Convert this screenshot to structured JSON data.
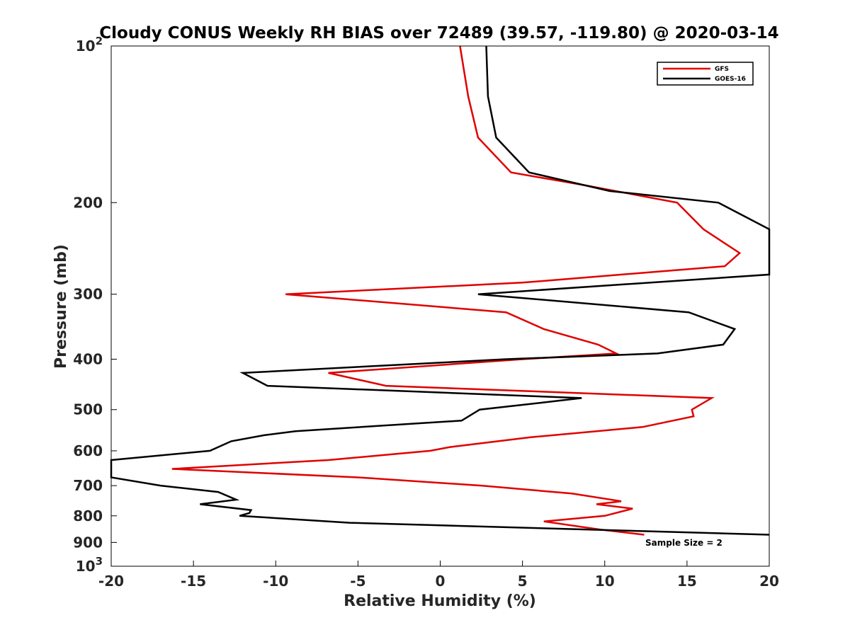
{
  "chart_data": {
    "type": "line",
    "title": "Cloudy CONUS Weekly RH BIAS over 72489 (39.57, -119.80) @ 2020-03-14",
    "xlabel": "Relative Humidity (%)",
    "ylabel": "Pressure (mb)",
    "xlim": [
      -20,
      20
    ],
    "ylim": [
      100,
      1000
    ],
    "y_scale": "log",
    "y_reversed": true,
    "grid": false,
    "legend_position": "top-right",
    "x_ticks": [
      -20,
      -15,
      -10,
      -5,
      0,
      5,
      10,
      15,
      20
    ],
    "x_tick_labels": [
      "-20",
      "-15",
      "-10",
      "-5",
      "0",
      "5",
      "10",
      "15",
      "20"
    ],
    "y_ticks": [
      {
        "value": 100,
        "base": "10",
        "exp": "2"
      },
      {
        "value": 200,
        "label": "200"
      },
      {
        "value": 300,
        "label": "300"
      },
      {
        "value": 400,
        "label": "400"
      },
      {
        "value": 500,
        "label": "500"
      },
      {
        "value": 600,
        "label": "600"
      },
      {
        "value": 700,
        "label": "700"
      },
      {
        "value": 800,
        "label": "800"
      },
      {
        "value": 900,
        "label": "900"
      },
      {
        "value": 1000,
        "base": "10",
        "exp": "3"
      }
    ],
    "series": [
      {
        "name": "GFS",
        "color": "#e00000",
        "points": [
          {
            "p": 100,
            "x": 1.2
          },
          {
            "p": 125,
            "x": 1.7
          },
          {
            "p": 150,
            "x": 2.3
          },
          {
            "p": 175,
            "x": 4.3
          },
          {
            "p": 185,
            "x": 8.7
          },
          {
            "p": 200,
            "x": 14.4
          },
          {
            "p": 225,
            "x": 16.0
          },
          {
            "p": 250,
            "x": 18.2
          },
          {
            "p": 265,
            "x": 17.3
          },
          {
            "p": 285,
            "x": 5.0
          },
          {
            "p": 300,
            "x": -9.4
          },
          {
            "p": 325,
            "x": 4.0
          },
          {
            "p": 350,
            "x": 6.3
          },
          {
            "p": 375,
            "x": 9.6
          },
          {
            "p": 390,
            "x": 10.7
          },
          {
            "p": 400,
            "x": 5.0
          },
          {
            "p": 425,
            "x": -6.8
          },
          {
            "p": 450,
            "x": -3.3
          },
          {
            "p": 475,
            "x": 16.5
          },
          {
            "p": 500,
            "x": 15.3
          },
          {
            "p": 515,
            "x": 15.4
          },
          {
            "p": 540,
            "x": 12.3
          },
          {
            "p": 565,
            "x": 5.5
          },
          {
            "p": 590,
            "x": 0.6
          },
          {
            "p": 600,
            "x": -0.6
          },
          {
            "p": 625,
            "x": -6.8
          },
          {
            "p": 650,
            "x": -16.3
          },
          {
            "p": 675,
            "x": -5.0
          },
          {
            "p": 700,
            "x": 2.5
          },
          {
            "p": 725,
            "x": 8.0
          },
          {
            "p": 750,
            "x": 11.0
          },
          {
            "p": 760,
            "x": 9.5
          },
          {
            "p": 775,
            "x": 11.7
          },
          {
            "p": 800,
            "x": 10.0
          },
          {
            "p": 820,
            "x": 6.3
          },
          {
            "p": 850,
            "x": 9.7
          },
          {
            "p": 870,
            "x": 12.4
          }
        ]
      },
      {
        "name": "GOES-16",
        "color": "#000000",
        "points": [
          {
            "p": 100,
            "x": 2.8
          },
          {
            "p": 125,
            "x": 2.9
          },
          {
            "p": 150,
            "x": 3.4
          },
          {
            "p": 175,
            "x": 5.4
          },
          {
            "p": 190,
            "x": 10.3
          },
          {
            "p": 200,
            "x": 16.9
          },
          {
            "p": 225,
            "x": 20.0
          },
          {
            "p": 275,
            "x": 20.0
          },
          {
            "p": 300,
            "x": 2.3
          },
          {
            "p": 325,
            "x": 15.1
          },
          {
            "p": 350,
            "x": 17.9
          },
          {
            "p": 375,
            "x": 17.2
          },
          {
            "p": 390,
            "x": 13.2
          },
          {
            "p": 400,
            "x": 4.0
          },
          {
            "p": 425,
            "x": -12.0
          },
          {
            "p": 450,
            "x": -10.5
          },
          {
            "p": 475,
            "x": 8.6
          },
          {
            "p": 490,
            "x": 4.9
          },
          {
            "p": 500,
            "x": 2.4
          },
          {
            "p": 525,
            "x": 1.3
          },
          {
            "p": 550,
            "x": -8.8
          },
          {
            "p": 560,
            "x": -10.7
          },
          {
            "p": 575,
            "x": -12.7
          },
          {
            "p": 600,
            "x": -14.0
          },
          {
            "p": 625,
            "x": -20.0
          },
          {
            "p": 675,
            "x": -20.0
          },
          {
            "p": 700,
            "x": -17.0
          },
          {
            "p": 720,
            "x": -13.5
          },
          {
            "p": 745,
            "x": -12.4
          },
          {
            "p": 760,
            "x": -14.6
          },
          {
            "p": 780,
            "x": -11.5
          },
          {
            "p": 790,
            "x": -11.6
          },
          {
            "p": 800,
            "x": -12.2
          },
          {
            "p": 825,
            "x": -5.5
          },
          {
            "p": 870,
            "x": 20.0
          }
        ]
      }
    ],
    "annotations": [
      {
        "text": "Sample Size = 2"
      }
    ]
  }
}
